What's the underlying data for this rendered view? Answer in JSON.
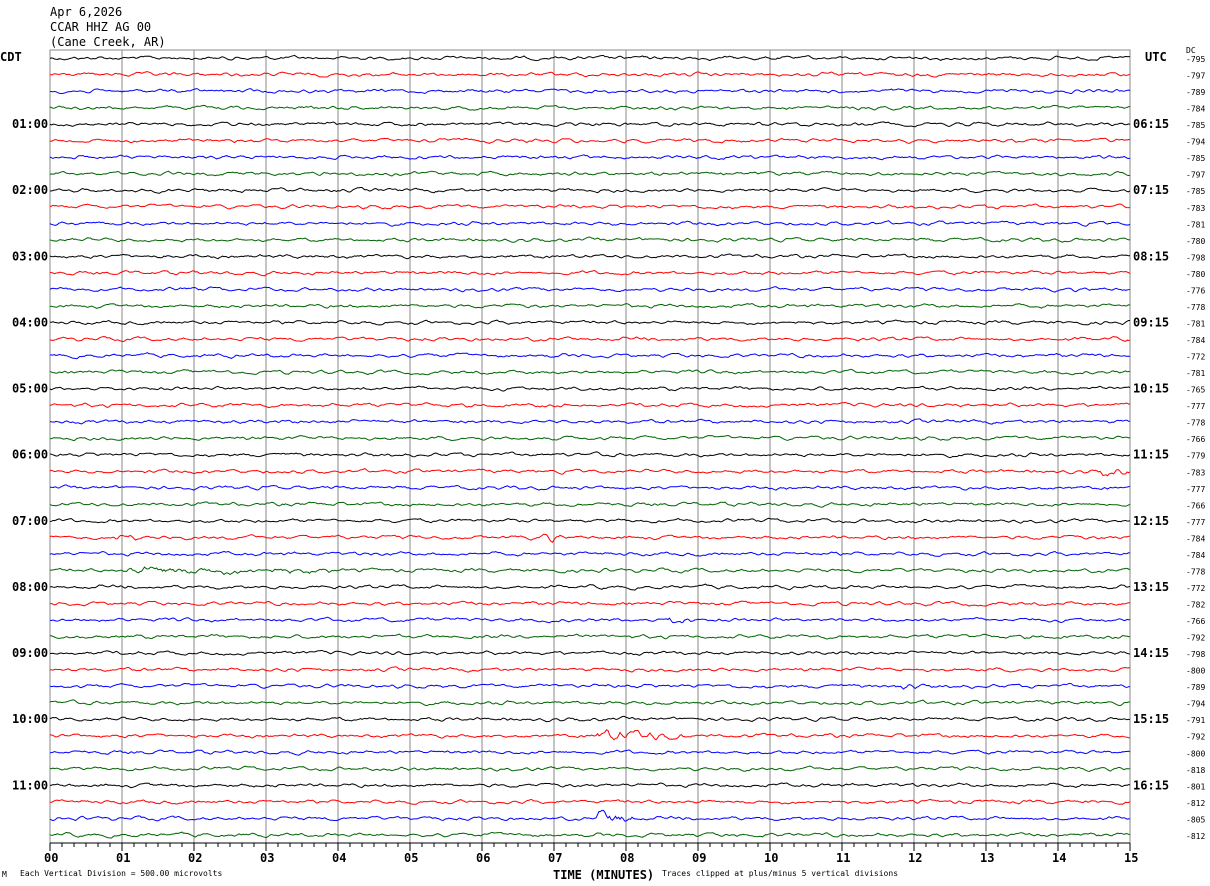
{
  "header": {
    "date": "Apr 6,2026",
    "station": "CCAR HHZ AG 00",
    "location": "(Cane Creek, AR)",
    "left_tz": "CDT",
    "right_tz": "UTC",
    "dc_label": "DC"
  },
  "footer": {
    "corner_mark": "M",
    "scale_note": "Each Vertical Division =  500.00 microvolts",
    "xlabel": "TIME (MINUTES)",
    "clip_note": "Traces clipped at plus/minus 5 vertical divisions"
  },
  "chart_data": {
    "type": "line",
    "title": "CCAR HHZ AG 00 helicorder",
    "xlabel": "TIME (MINUTES)",
    "xlim": [
      0,
      15
    ],
    "x_ticks": [
      "00",
      "01",
      "02",
      "03",
      "04",
      "05",
      "06",
      "07",
      "08",
      "09",
      "10",
      "11",
      "12",
      "13",
      "14",
      "15"
    ],
    "grid": true,
    "trace_colors": [
      "#000000",
      "#ff0000",
      "#0000ff",
      "#006400"
    ],
    "traces_per_hour": 4,
    "left_hour_labels": [
      "01:00",
      "02:00",
      "03:00",
      "04:00",
      "05:00",
      "06:00",
      "07:00",
      "08:00",
      "09:00",
      "10:00",
      "11:00"
    ],
    "right_hour_labels": [
      "06:15",
      "07:15",
      "08:15",
      "09:15",
      "10:15",
      "11:15",
      "12:15",
      "13:15",
      "14:15",
      "15:15",
      "16:15"
    ],
    "dc_offsets": [
      "-795",
      "-797",
      "-789",
      "-784",
      "-785",
      "-794",
      "-785",
      "-797",
      "-785",
      "-783",
      "-781",
      "-780",
      "-798",
      "-780",
      "-776",
      "-778",
      "-781",
      "-784",
      "-772",
      "-781",
      "-765",
      "-777",
      "-778",
      "-766",
      "-779",
      "-783",
      "-777",
      "-766",
      "-777",
      "-784",
      "-784",
      "-778",
      "-772",
      "-782",
      "-766",
      "-792",
      "-798",
      "-800",
      "-789",
      "-794",
      "-791",
      "-792",
      "-800",
      "-818",
      "-801",
      "-812",
      "-805",
      "-812"
    ],
    "events": [
      {
        "trace": 29,
        "minute": 0.9,
        "width": 0.3,
        "amp": 2.5
      },
      {
        "trace": 29,
        "minute": 6.8,
        "width": 0.3,
        "amp": 2.5
      },
      {
        "trace": 31,
        "minute": 1.0,
        "width": 2.9,
        "amp": 2.0
      },
      {
        "trace": 34,
        "minute": 8.6,
        "width": 0.3,
        "amp": 2.5
      },
      {
        "trace": 38,
        "minute": 11.7,
        "width": 0.4,
        "amp": 2.5
      },
      {
        "trace": 41,
        "minute": 7.6,
        "width": 1.2,
        "amp": 4.0
      },
      {
        "trace": 46,
        "minute": 7.6,
        "width": 0.5,
        "amp": 5.0
      },
      {
        "trace": 25,
        "minute": 14.6,
        "width": 0.4,
        "amp": 2.5
      }
    ]
  }
}
